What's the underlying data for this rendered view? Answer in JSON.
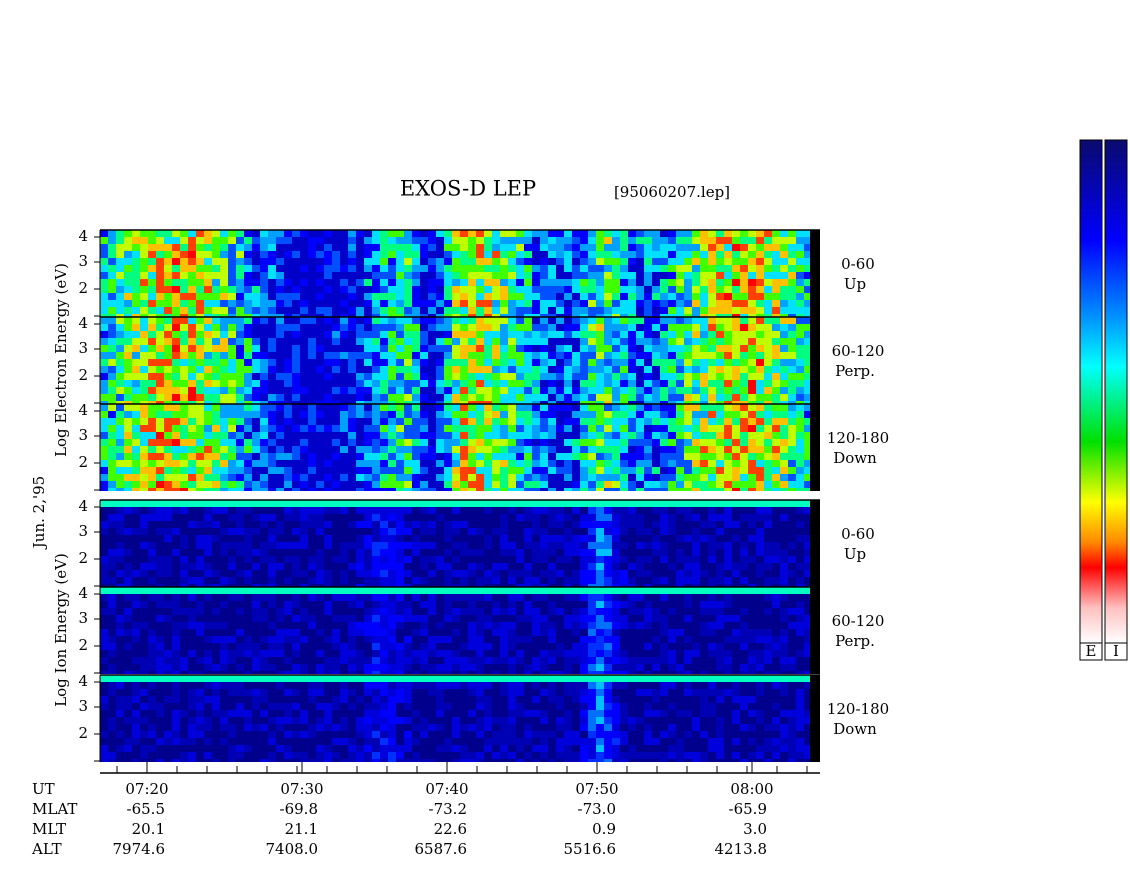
{
  "header": {
    "title": "EXOS-D LEP",
    "file": "[95060207.lep]"
  },
  "date": "Jun. 2,'95",
  "electron": {
    "axis_label": "Log Electron Energy (eV)",
    "panels": [
      {
        "range": "0-60",
        "direction": "Up"
      },
      {
        "range": "60-120",
        "direction": "Perp."
      },
      {
        "range": "120-180",
        "direction": "Down"
      }
    ]
  },
  "ion": {
    "axis_label": "Log Ion Energy (eV)",
    "panels": [
      {
        "range": "0-60",
        "direction": "Up"
      },
      {
        "range": "60-120",
        "direction": "Perp."
      },
      {
        "range": "120-180",
        "direction": "Down"
      }
    ]
  },
  "yticks": [
    "4",
    "3",
    "2"
  ],
  "footer": {
    "rows": [
      {
        "label": "UT",
        "values": [
          "07:20",
          "07:30",
          "07:40",
          "07:50",
          "08:00"
        ]
      },
      {
        "label": "MLAT",
        "values": [
          "-65.5",
          "-69.8",
          "-73.2",
          "-73.0",
          "-65.9"
        ]
      },
      {
        "label": "MLT",
        "values": [
          "20.1",
          "21.1",
          "22.6",
          "0.9",
          "3.0"
        ]
      },
      {
        "label": "ALT",
        "values": [
          "7974.6",
          "7408.0",
          "6587.6",
          "5516.6",
          "4213.8"
        ]
      }
    ]
  },
  "colorbars": [
    "E",
    "I"
  ]
}
